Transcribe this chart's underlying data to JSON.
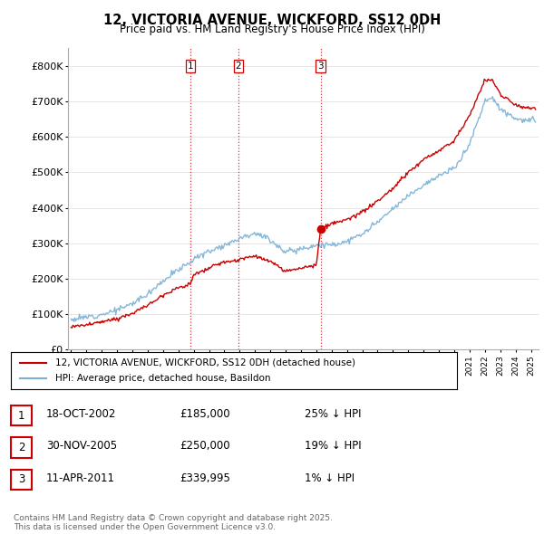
{
  "title": "12, VICTORIA AVENUE, WICKFORD, SS12 0DH",
  "subtitle": "Price paid vs. HM Land Registry's House Price Index (HPI)",
  "ylim": [
    0,
    850000
  ],
  "yticks": [
    0,
    100000,
    200000,
    300000,
    400000,
    500000,
    600000,
    700000,
    800000
  ],
  "ytick_labels": [
    "£0",
    "£100K",
    "£200K",
    "£300K",
    "£400K",
    "£500K",
    "£600K",
    "£700K",
    "£800K"
  ],
  "sale_color": "#cc0000",
  "hpi_color": "#7ab0d4",
  "vline_color": "#cc0000",
  "sales": [
    {
      "date_num": 2002.79,
      "price": 185000,
      "label": "1"
    },
    {
      "date_num": 2005.92,
      "price": 250000,
      "label": "2"
    },
    {
      "date_num": 2011.28,
      "price": 339995,
      "label": "3"
    }
  ],
  "legend_line1": "12, VICTORIA AVENUE, WICKFORD, SS12 0DH (detached house)",
  "legend_line2": "HPI: Average price, detached house, Basildon",
  "footnote": "Contains HM Land Registry data © Crown copyright and database right 2025.\nThis data is licensed under the Open Government Licence v3.0.",
  "table_rows": [
    [
      "1",
      "18-OCT-2002",
      "£185,000",
      "25% ↓ HPI"
    ],
    [
      "2",
      "30-NOV-2005",
      "£250,000",
      "19% ↓ HPI"
    ],
    [
      "3",
      "11-APR-2011",
      "£339,995",
      "1% ↓ HPI"
    ]
  ]
}
